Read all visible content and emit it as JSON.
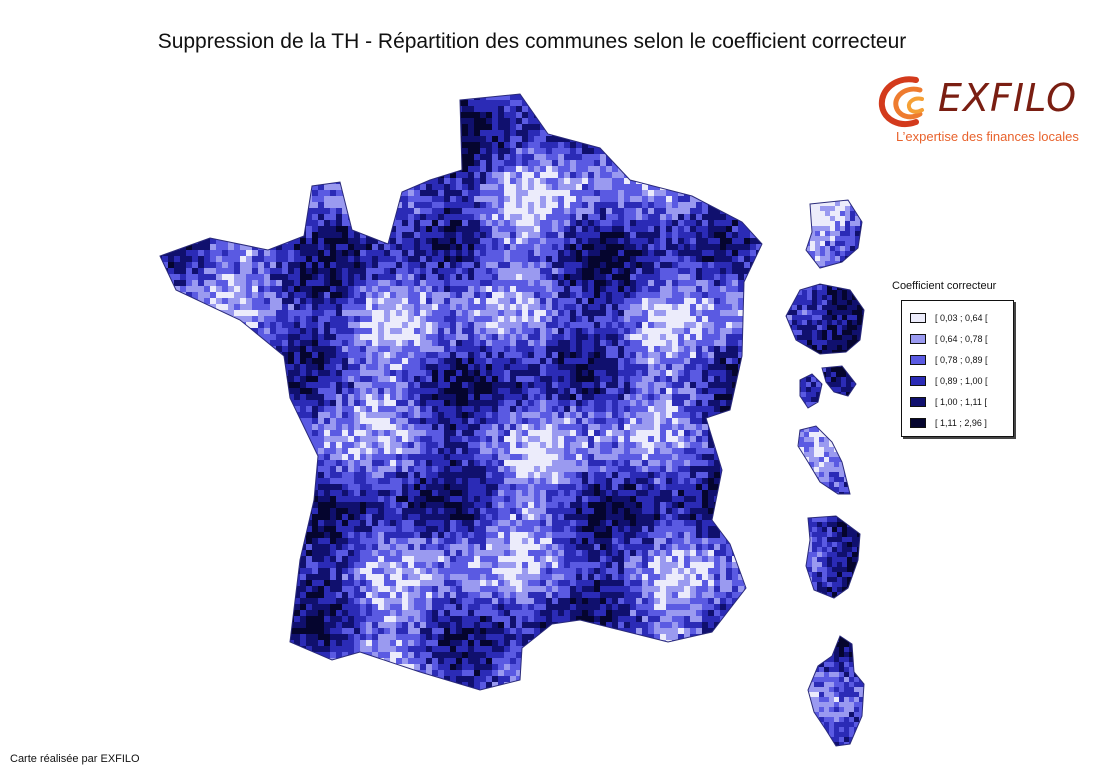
{
  "title": "Suppression de la TH - Répartition des communes selon le coefficient correcteur",
  "logo": {
    "name": "EXFILO",
    "tagline": "L’expertise des finances locales"
  },
  "legend": {
    "title": "Coefficient correcteur",
    "items": [
      {
        "label": "[ 0,03 ; 0,64 [",
        "color": "#ececfb"
      },
      {
        "label": "[ 0,64 ; 0,78 [",
        "color": "#9a9af0"
      },
      {
        "label": "[ 0,78 ; 0,89 [",
        "color": "#5a5ae2"
      },
      {
        "label": "[ 0,89 ; 1,00 [",
        "color": "#2b2bb6"
      },
      {
        "label": "[ 1,00 ; 1,11 [",
        "color": "#10106e"
      },
      {
        "label": "[ 1,11 ; 2,96 ]",
        "color": "#05052e"
      }
    ]
  },
  "credit": "Carte réalisée par EXFILO",
  "colors": {
    "logo_red": "#7a1e12",
    "logo_orange": "#e8622c"
  }
}
